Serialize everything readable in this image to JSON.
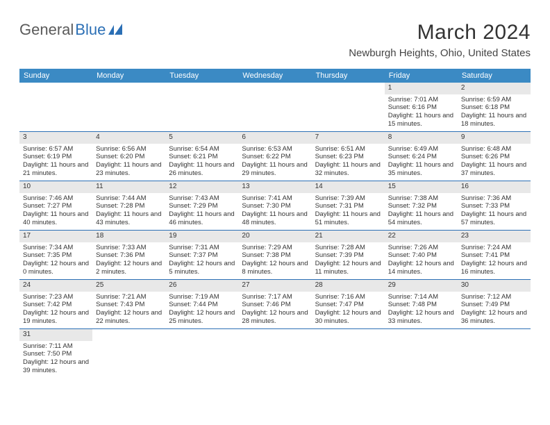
{
  "logo": {
    "text1": "General",
    "text2": "Blue"
  },
  "title": "March 2024",
  "location": "Newburgh Heights, Ohio, United States",
  "colors": {
    "header_bg": "#3b8ac4",
    "border": "#2b6fb5",
    "daynum_bg": "#e8e8e8"
  },
  "weekdays": [
    "Sunday",
    "Monday",
    "Tuesday",
    "Wednesday",
    "Thursday",
    "Friday",
    "Saturday"
  ],
  "weeks": [
    [
      null,
      null,
      null,
      null,
      null,
      {
        "d": "1",
        "sr": "7:01 AM",
        "ss": "6:16 PM",
        "dl": "11 hours and 15 minutes."
      },
      {
        "d": "2",
        "sr": "6:59 AM",
        "ss": "6:18 PM",
        "dl": "11 hours and 18 minutes."
      }
    ],
    [
      {
        "d": "3",
        "sr": "6:57 AM",
        "ss": "6:19 PM",
        "dl": "11 hours and 21 minutes."
      },
      {
        "d": "4",
        "sr": "6:56 AM",
        "ss": "6:20 PM",
        "dl": "11 hours and 23 minutes."
      },
      {
        "d": "5",
        "sr": "6:54 AM",
        "ss": "6:21 PM",
        "dl": "11 hours and 26 minutes."
      },
      {
        "d": "6",
        "sr": "6:53 AM",
        "ss": "6:22 PM",
        "dl": "11 hours and 29 minutes."
      },
      {
        "d": "7",
        "sr": "6:51 AM",
        "ss": "6:23 PM",
        "dl": "11 hours and 32 minutes."
      },
      {
        "d": "8",
        "sr": "6:49 AM",
        "ss": "6:24 PM",
        "dl": "11 hours and 35 minutes."
      },
      {
        "d": "9",
        "sr": "6:48 AM",
        "ss": "6:26 PM",
        "dl": "11 hours and 37 minutes."
      }
    ],
    [
      {
        "d": "10",
        "sr": "7:46 AM",
        "ss": "7:27 PM",
        "dl": "11 hours and 40 minutes."
      },
      {
        "d": "11",
        "sr": "7:44 AM",
        "ss": "7:28 PM",
        "dl": "11 hours and 43 minutes."
      },
      {
        "d": "12",
        "sr": "7:43 AM",
        "ss": "7:29 PM",
        "dl": "11 hours and 46 minutes."
      },
      {
        "d": "13",
        "sr": "7:41 AM",
        "ss": "7:30 PM",
        "dl": "11 hours and 48 minutes."
      },
      {
        "d": "14",
        "sr": "7:39 AM",
        "ss": "7:31 PM",
        "dl": "11 hours and 51 minutes."
      },
      {
        "d": "15",
        "sr": "7:38 AM",
        "ss": "7:32 PM",
        "dl": "11 hours and 54 minutes."
      },
      {
        "d": "16",
        "sr": "7:36 AM",
        "ss": "7:33 PM",
        "dl": "11 hours and 57 minutes."
      }
    ],
    [
      {
        "d": "17",
        "sr": "7:34 AM",
        "ss": "7:35 PM",
        "dl": "12 hours and 0 minutes."
      },
      {
        "d": "18",
        "sr": "7:33 AM",
        "ss": "7:36 PM",
        "dl": "12 hours and 2 minutes."
      },
      {
        "d": "19",
        "sr": "7:31 AM",
        "ss": "7:37 PM",
        "dl": "12 hours and 5 minutes."
      },
      {
        "d": "20",
        "sr": "7:29 AM",
        "ss": "7:38 PM",
        "dl": "12 hours and 8 minutes."
      },
      {
        "d": "21",
        "sr": "7:28 AM",
        "ss": "7:39 PM",
        "dl": "12 hours and 11 minutes."
      },
      {
        "d": "22",
        "sr": "7:26 AM",
        "ss": "7:40 PM",
        "dl": "12 hours and 14 minutes."
      },
      {
        "d": "23",
        "sr": "7:24 AM",
        "ss": "7:41 PM",
        "dl": "12 hours and 16 minutes."
      }
    ],
    [
      {
        "d": "24",
        "sr": "7:23 AM",
        "ss": "7:42 PM",
        "dl": "12 hours and 19 minutes."
      },
      {
        "d": "25",
        "sr": "7:21 AM",
        "ss": "7:43 PM",
        "dl": "12 hours and 22 minutes."
      },
      {
        "d": "26",
        "sr": "7:19 AM",
        "ss": "7:44 PM",
        "dl": "12 hours and 25 minutes."
      },
      {
        "d": "27",
        "sr": "7:17 AM",
        "ss": "7:46 PM",
        "dl": "12 hours and 28 minutes."
      },
      {
        "d": "28",
        "sr": "7:16 AM",
        "ss": "7:47 PM",
        "dl": "12 hours and 30 minutes."
      },
      {
        "d": "29",
        "sr": "7:14 AM",
        "ss": "7:48 PM",
        "dl": "12 hours and 33 minutes."
      },
      {
        "d": "30",
        "sr": "7:12 AM",
        "ss": "7:49 PM",
        "dl": "12 hours and 36 minutes."
      }
    ],
    [
      {
        "d": "31",
        "sr": "7:11 AM",
        "ss": "7:50 PM",
        "dl": "12 hours and 39 minutes."
      },
      null,
      null,
      null,
      null,
      null,
      null
    ]
  ],
  "labels": {
    "sunrise": "Sunrise:",
    "sunset": "Sunset:",
    "daylight": "Daylight:"
  }
}
